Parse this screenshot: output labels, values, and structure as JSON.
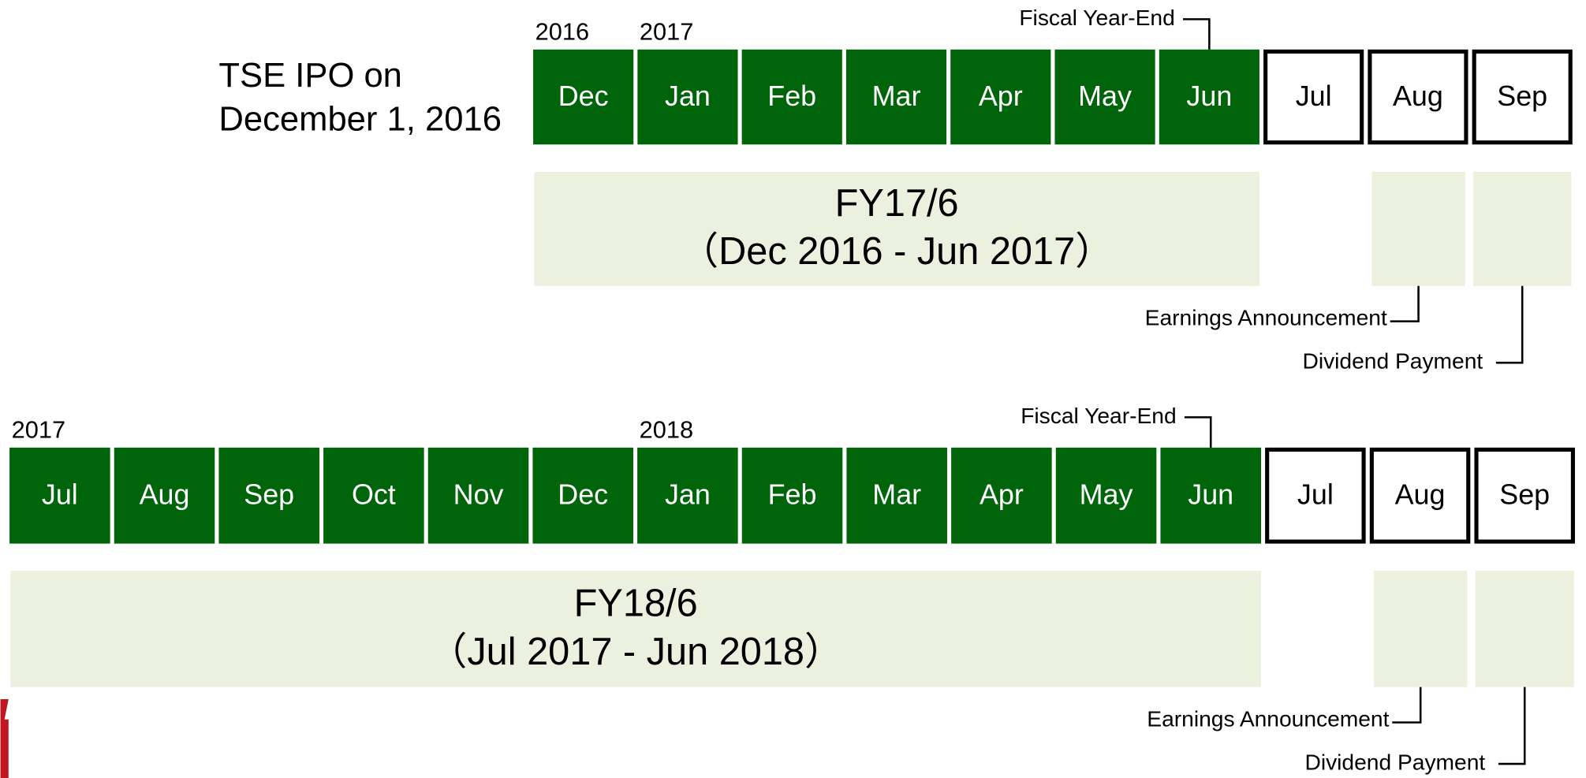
{
  "ipo_note": [
    "TSE IPO on",
    "December 1, 2016"
  ],
  "timelines": [
    {
      "months": [
        {
          "label": "Dec",
          "year": "2016",
          "filled": true
        },
        {
          "label": "Jan",
          "year": "2017",
          "filled": true
        },
        {
          "label": "Feb",
          "filled": true
        },
        {
          "label": "Mar",
          "filled": true
        },
        {
          "label": "Apr",
          "filled": true
        },
        {
          "label": "May",
          "filled": true
        },
        {
          "label": "Jun",
          "filled": true
        },
        {
          "label": "Jul",
          "filled": false
        },
        {
          "label": "Aug",
          "filled": false
        },
        {
          "label": "Sep",
          "filled": false
        }
      ],
      "fiscal_year_end": "Fiscal Year-End",
      "period": {
        "title": "FY17/6",
        "range": "（Dec 2016 - Jun 2017）"
      },
      "earnings": "Earnings Announcement",
      "dividend": "Dividend Payment"
    },
    {
      "months": [
        {
          "label": "Jul",
          "year": "2017",
          "filled": true
        },
        {
          "label": "Aug",
          "filled": true
        },
        {
          "label": "Sep",
          "filled": true
        },
        {
          "label": "Oct",
          "filled": true
        },
        {
          "label": "Nov",
          "filled": true
        },
        {
          "label": "Dec",
          "filled": true
        },
        {
          "label": "Jan",
          "year": "2018",
          "filled": true
        },
        {
          "label": "Feb",
          "filled": true
        },
        {
          "label": "Mar",
          "filled": true
        },
        {
          "label": "Apr",
          "filled": true
        },
        {
          "label": "May",
          "filled": true
        },
        {
          "label": "Jun",
          "filled": true
        },
        {
          "label": "Jul",
          "filled": false
        },
        {
          "label": "Aug",
          "filled": false
        },
        {
          "label": "Sep",
          "filled": false
        }
      ],
      "fiscal_year_end": "Fiscal Year-End",
      "period": {
        "title": "FY18/6",
        "range": "（Jul 2017 - Jun 2018）"
      },
      "earnings": "Earnings Announcement",
      "dividend": "Dividend Payment"
    }
  ]
}
